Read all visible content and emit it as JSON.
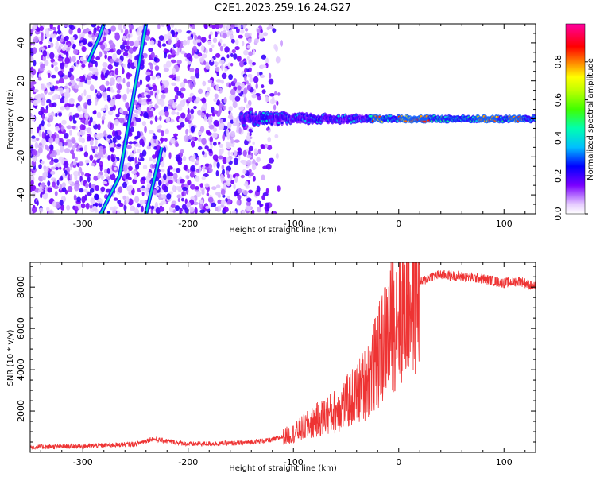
{
  "title": "C2E1.2023.259.16.24.G27",
  "chart_data": [
    {
      "type": "heatmap",
      "xlabel": "Height of straight line (km)",
      "ylabel": "Frequency (Hz)",
      "xlim": [
        -350,
        130
      ],
      "ylim": [
        -50,
        50
      ],
      "xticks": [
        -300,
        -200,
        -100,
        0,
        100
      ],
      "yticks": [
        -40,
        -20,
        0,
        20,
        40
      ],
      "colorbar": {
        "label": "Normalized spectral amplitude",
        "range": [
          0,
          1
        ],
        "ticks": [
          0.0,
          0.2,
          0.4,
          0.6,
          0.8
        ],
        "colormap": [
          "#ffffff",
          "#7b00ff",
          "#0000ff",
          "#00bfff",
          "#00ff80",
          "#80ff00",
          "#ffff00",
          "#ff8000",
          "#ff0000",
          "#ff00a0"
        ]
      },
      "features": [
        {
          "name": "carrier",
          "description_units": "frequency vs height",
          "x": [
            -150,
            -100,
            -50,
            -25,
            0,
            50,
            100,
            130
          ],
          "y": [
            0,
            0,
            0,
            0,
            0,
            0,
            0,
            0
          ],
          "amplitude": [
            0.25,
            0.3,
            0.3,
            0.45,
            0.75,
            0.7,
            0.85,
            0.5
          ]
        },
        {
          "name": "tilted-line-1",
          "x": [
            -295,
            -285,
            -280
          ],
          "y": [
            30,
            42,
            50
          ]
        },
        {
          "name": "tilted-line-2",
          "x": [
            -283,
            -265,
            -240
          ],
          "y": [
            -50,
            -30,
            50
          ]
        },
        {
          "name": "tilted-line-3",
          "x": [
            -240,
            -225
          ],
          "y": [
            -50,
            -15
          ]
        }
      ]
    },
    {
      "type": "line",
      "xlabel": "Height of straight line (km)",
      "ylabel": "SNR (10 * v/v)",
      "xlim": [
        -350,
        130
      ],
      "ylim": [
        0,
        9200
      ],
      "xticks": [
        -300,
        -200,
        -100,
        0,
        100
      ],
      "yticks": [
        2000,
        4000,
        6000,
        8000
      ],
      "color": "#ee3333",
      "x": [
        -350,
        -300,
        -250,
        -235,
        -200,
        -150,
        -120,
        -100,
        -80,
        -60,
        -40,
        -30,
        -20,
        -10,
        0,
        10,
        20,
        30,
        40,
        60,
        80,
        100,
        115,
        130
      ],
      "y": [
        250,
        300,
        400,
        650,
        400,
        450,
        600,
        900,
        1500,
        2000,
        2800,
        3500,
        4500,
        5800,
        6800,
        7600,
        8200,
        8500,
        8600,
        8500,
        8400,
        8200,
        8300,
        8000
      ]
    }
  ]
}
